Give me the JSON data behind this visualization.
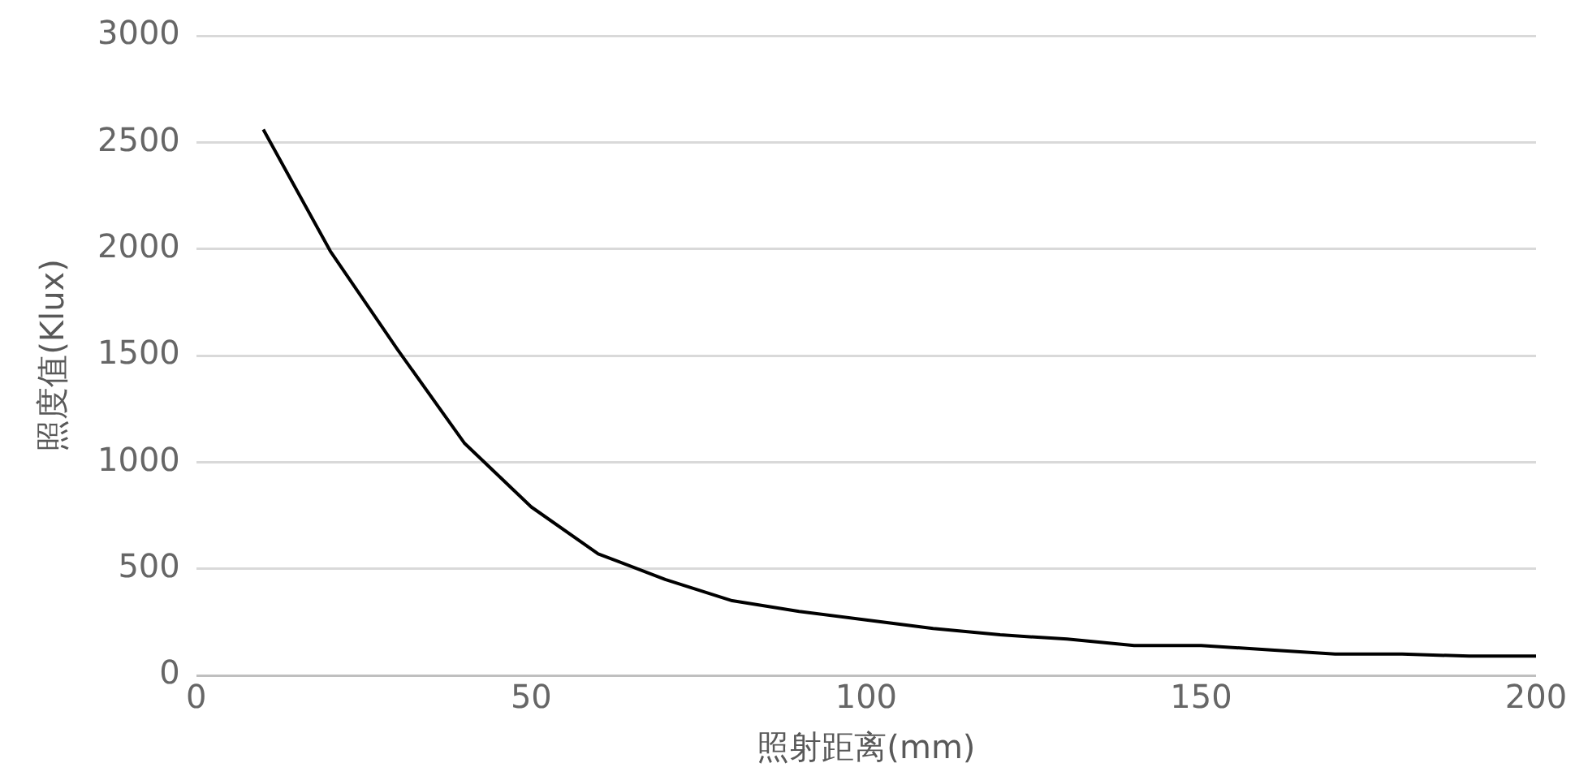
{
  "chart_data": {
    "type": "line",
    "xlabel": "照射距离(mm)",
    "ylabel": "照度值(Klux)",
    "x": [
      10,
      20,
      30,
      40,
      50,
      60,
      70,
      80,
      90,
      100,
      110,
      120,
      130,
      140,
      150,
      160,
      170,
      180,
      190,
      200
    ],
    "series": [
      {
        "color": "#000000",
        "values": [
          2560,
          1990,
          1530,
          1090,
          790,
          570,
          450,
          350,
          300,
          260,
          220,
          190,
          170,
          140,
          140,
          120,
          100,
          100,
          90,
          90
        ]
      }
    ],
    "xlim": [
      0,
      200
    ],
    "xticks": [
      0,
      50,
      100,
      150,
      200
    ],
    "ylim": [
      0,
      3000
    ],
    "yticks": [
      0,
      500,
      1000,
      1500,
      2000,
      2500,
      3000
    ],
    "grid": "y",
    "legend": false,
    "marker": "none",
    "line_style": "solid"
  }
}
